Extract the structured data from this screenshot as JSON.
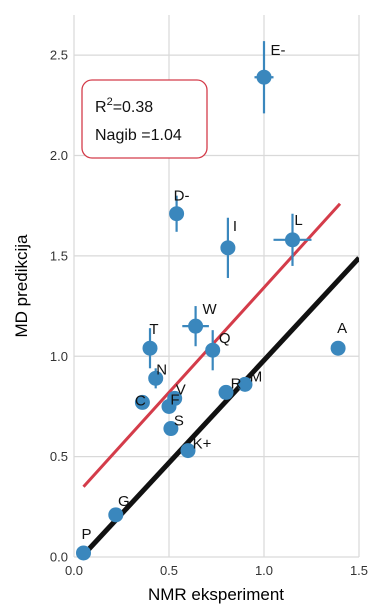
{
  "chart_data": {
    "type": "scatter",
    "xlabel": "NMR eksperiment",
    "ylabel": "MD predikcija",
    "xlim": [
      0.0,
      1.5
    ],
    "ylim": [
      0.0,
      2.7
    ],
    "xticks": [
      "0.0",
      "0.5",
      "1.0",
      "1.5"
    ],
    "yticks": [
      "0.0",
      "0.5",
      "1.0",
      "1.5",
      "2.0",
      "2.5"
    ],
    "grid": true,
    "point_color": "#3a87bd",
    "points": [
      {
        "label": "P",
        "x": 0.05,
        "y": 0.02,
        "xerr": 0.0,
        "yerr": 0.0
      },
      {
        "label": "G",
        "x": 0.22,
        "y": 0.21,
        "xerr": 0.0,
        "yerr": 0.0
      },
      {
        "label": "C",
        "x": 0.36,
        "y": 0.77,
        "xerr": 0.0,
        "yerr": 0.0
      },
      {
        "label": "T",
        "x": 0.4,
        "y": 1.04,
        "xerr": 0.0,
        "yerr": 0.1
      },
      {
        "label": "N",
        "x": 0.43,
        "y": 0.89,
        "xerr": 0.0,
        "yerr": 0.05
      },
      {
        "label": "F",
        "x": 0.5,
        "y": 0.75,
        "xerr": 0.0,
        "yerr": 0.0
      },
      {
        "label": "V",
        "x": 0.53,
        "y": 0.79,
        "xerr": 0.0,
        "yerr": 0.0
      },
      {
        "label": "S",
        "x": 0.51,
        "y": 0.64,
        "xerr": 0.0,
        "yerr": 0.0
      },
      {
        "label": "D-",
        "x": 0.54,
        "y": 1.71,
        "xerr": 0.0,
        "yerr": 0.09
      },
      {
        "label": "K+",
        "x": 0.6,
        "y": 0.53,
        "xerr": 0.0,
        "yerr": 0.0
      },
      {
        "label": "W",
        "x": 0.64,
        "y": 1.15,
        "xerr": 0.07,
        "yerr": 0.1
      },
      {
        "label": "Q",
        "x": 0.73,
        "y": 1.03,
        "xerr": 0.0,
        "yerr": 0.1
      },
      {
        "label": "I",
        "x": 0.81,
        "y": 1.54,
        "xerr": 0.0,
        "yerr": 0.15
      },
      {
        "label": "R",
        "x": 0.8,
        "y": 0.82,
        "xerr": 0.0,
        "yerr": 0.0
      },
      {
        "label": "M",
        "x": 0.9,
        "y": 0.86,
        "xerr": 0.0,
        "yerr": 0.0
      },
      {
        "label": "E-",
        "x": 1.0,
        "y": 2.39,
        "xerr": 0.05,
        "yerr": 0.18
      },
      {
        "label": "L",
        "x": 1.15,
        "y": 1.58,
        "xerr": 0.1,
        "yerr": 0.13
      },
      {
        "label": "A",
        "x": 1.39,
        "y": 1.04,
        "xerr": 0.0,
        "yerr": 0.0
      }
    ],
    "lines": [
      {
        "color": "#111111",
        "x": [
          0.04,
          1.5
        ],
        "y": [
          0.0,
          1.49
        ]
      },
      {
        "color": "#d43c4a",
        "x": [
          0.05,
          1.4
        ],
        "y": [
          0.35,
          1.76
        ]
      }
    ],
    "annotation": {
      "r2_label": "R",
      "r2_sup": "2",
      "r2_value": "=0.38",
      "slope_text": "Nagib =1.04",
      "border_color": "#d43c4a"
    }
  }
}
